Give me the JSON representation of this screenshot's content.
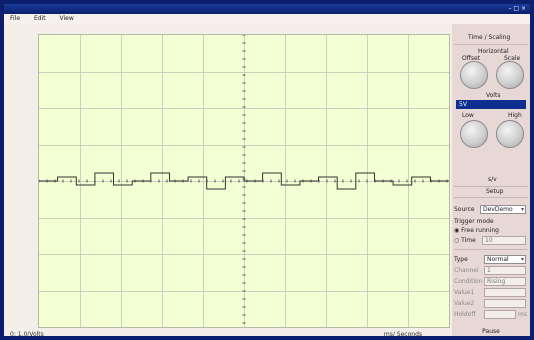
{
  "window": {
    "title": "",
    "controls": "– □ ×"
  },
  "menu": {
    "items": [
      "File",
      "Edit",
      "View"
    ]
  },
  "scope": {
    "trace_color": "#333333",
    "grid_color": "#c8d0c0",
    "screen_bg": "#f2ffd2",
    "trace_y": [
      0.0,
      0.1,
      -0.1,
      0.2,
      -0.1,
      0.0,
      0.2,
      0.0,
      0.1,
      -0.2,
      0.1,
      0.0,
      0.2,
      -0.1,
      0.0,
      0.1,
      -0.2,
      0.2,
      0.0,
      -0.1,
      0.1,
      0.0
    ]
  },
  "status": {
    "left": "0: 1.0/Volts",
    "right": "ms/ Seconds"
  },
  "panel": {
    "timing_header": "Time / Scaling",
    "knob_group_label": "Horizontal",
    "knob_left_label": "Offset",
    "knob_right_label": "Scale",
    "volts_label": "Volts",
    "volts_value": "5V",
    "low_label": "Low",
    "high_label": "High",
    "units": "s/v",
    "section_header": "Setup",
    "source_label": "Source",
    "source_value": "DevDemo",
    "trigger_label": "Trigger mode",
    "radio1": "Free running",
    "radio2": "Time",
    "radio2_value": "10",
    "type_label": "Type",
    "type_value": "Normal",
    "channel_label": "Channel",
    "channel_value": "1",
    "condition_label": "Condition",
    "condition_value": "Rising",
    "value1_label": "Value1",
    "value2_label": "Value2",
    "holdoff_label": "Holdoff",
    "holdoff_unit": "ms",
    "bottom_button": "Pause"
  }
}
